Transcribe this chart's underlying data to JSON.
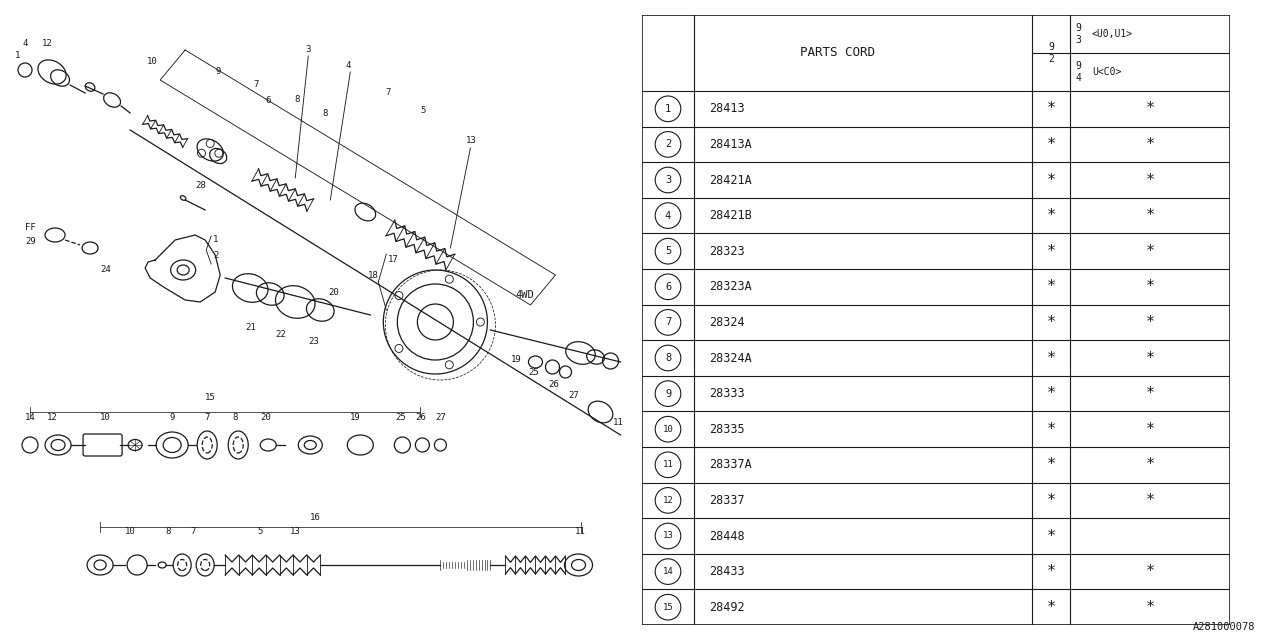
{
  "bg_color": "#ffffff",
  "line_color": "#1a1a1a",
  "parts": [
    {
      "num": "1",
      "code": "28413",
      "col1": true,
      "col2": true
    },
    {
      "num": "2",
      "code": "28413A",
      "col1": true,
      "col2": true
    },
    {
      "num": "3",
      "code": "28421A",
      "col1": true,
      "col2": true
    },
    {
      "num": "4",
      "code": "28421B",
      "col1": true,
      "col2": true
    },
    {
      "num": "5",
      "code": "28323",
      "col1": true,
      "col2": true
    },
    {
      "num": "6",
      "code": "28323A",
      "col1": true,
      "col2": true
    },
    {
      "num": "7",
      "code": "28324",
      "col1": true,
      "col2": true
    },
    {
      "num": "8",
      "code": "28324A",
      "col1": true,
      "col2": true
    },
    {
      "num": "9",
      "code": "28333",
      "col1": true,
      "col2": true
    },
    {
      "num": "10",
      "code": "28335",
      "col1": true,
      "col2": true
    },
    {
      "num": "11",
      "code": "28337A",
      "col1": true,
      "col2": true
    },
    {
      "num": "12",
      "code": "28337",
      "col1": true,
      "col2": true
    },
    {
      "num": "13",
      "code": "28448",
      "col1": true,
      "col2": false
    },
    {
      "num": "14",
      "code": "28433",
      "col1": true,
      "col2": true
    },
    {
      "num": "15",
      "code": "28492",
      "col1": true,
      "col2": true
    }
  ],
  "diagram_label": "A281000078"
}
